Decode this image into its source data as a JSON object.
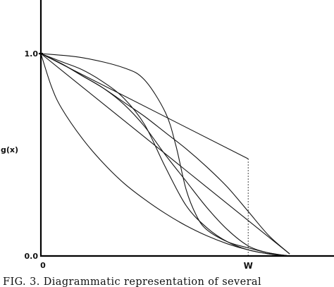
{
  "chart_data": {
    "type": "line",
    "ylabel": "g(x)",
    "xlim": [
      0,
      1.22
    ],
    "ylim": [
      0,
      1.32
    ],
    "x_ticks": [
      {
        "value": 0,
        "label": "0"
      },
      {
        "value": 1,
        "label": "W"
      }
    ],
    "y_ticks": [
      {
        "value": 0,
        "label": "0.0"
      },
      {
        "value": 1,
        "label": "1.0"
      }
    ],
    "grid": false,
    "series": [
      {
        "x": [
          0,
          0.2,
          0.4,
          0.6,
          0.8,
          1.0,
          1.2
        ],
        "y": [
          1.0,
          0.835,
          0.67,
          0.505,
          0.34,
          0.175,
          0.01
        ]
      },
      {
        "x": [
          0,
          0.1,
          0.2,
          0.3,
          0.4,
          0.5,
          0.6,
          0.7,
          0.8,
          0.9,
          1.0,
          1.1,
          1.2
        ],
        "y": [
          1.0,
          0.95,
          0.89,
          0.83,
          0.76,
          0.69,
          0.61,
          0.53,
          0.44,
          0.34,
          0.22,
          0.1,
          0.01
        ]
      },
      {
        "x": [
          0,
          0.1,
          0.2,
          0.3,
          0.4,
          0.5,
          0.6,
          0.7,
          0.8,
          0.9,
          1.0,
          1.1,
          1.2
        ],
        "y": [
          1.0,
          0.95,
          0.89,
          0.83,
          0.75,
          0.64,
          0.5,
          0.37,
          0.24,
          0.13,
          0.05,
          0.015,
          0.0
        ]
      },
      {
        "x": [
          0,
          0.1,
          0.2,
          0.3,
          0.4,
          0.5,
          0.6,
          0.7,
          0.8,
          0.9,
          1.0,
          1.1,
          1.2
        ],
        "y": [
          1.0,
          0.96,
          0.92,
          0.86,
          0.78,
          0.65,
          0.44,
          0.25,
          0.14,
          0.07,
          0.03,
          0.01,
          0.0
        ]
      },
      {
        "x": [
          0,
          0.2,
          0.4,
          0.5,
          0.6,
          0.65,
          0.7,
          0.75,
          0.8,
          0.9,
          1.0,
          1.1,
          1.2
        ],
        "y": [
          1.0,
          0.98,
          0.93,
          0.87,
          0.71,
          0.55,
          0.33,
          0.2,
          0.13,
          0.07,
          0.04,
          0.015,
          0.0
        ]
      },
      {
        "x": [
          0,
          0.05,
          0.1,
          0.2,
          0.3,
          0.4,
          0.5,
          0.6,
          0.7,
          0.8,
          0.9,
          1.0,
          1.1,
          1.2
        ],
        "y": [
          1.0,
          0.84,
          0.73,
          0.58,
          0.46,
          0.36,
          0.28,
          0.21,
          0.15,
          0.1,
          0.06,
          0.03,
          0.01,
          0.0
        ]
      },
      {
        "x": [
          0,
          1.0
        ],
        "y": [
          1.0,
          0.48
        ]
      }
    ],
    "reference_line": {
      "x": 1.0,
      "y_from": 0.48,
      "y_to": 0.0,
      "style": "dotted"
    }
  },
  "caption": "FIG. 3. Diagrammatic representation of several"
}
